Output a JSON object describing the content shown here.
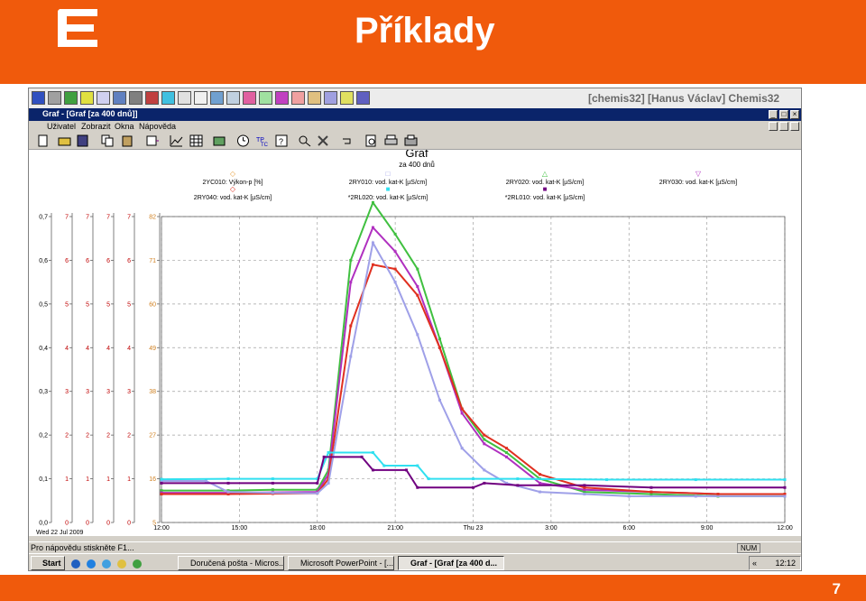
{
  "slide": {
    "title": "Příklady",
    "page_number": "7",
    "brand_color": "#f05a0c"
  },
  "app": {
    "info": "[chemis32] [Hanus Václav]    Chemis32"
  },
  "window": {
    "title": "Graf - [Graf [za 400 dnů]]",
    "buttons": [
      "_",
      "□",
      "×"
    ]
  },
  "menu": {
    "items": [
      "Uživatel",
      "Zobrazit",
      "Okna",
      "Nápověda"
    ]
  },
  "status": {
    "help_text": "Pro nápovědu stiskněte F1...",
    "num": "NUM"
  },
  "taskbar": {
    "start_label": "Start",
    "tasks": [
      {
        "label": "Doručená pošta - Micros...",
        "active": false
      },
      {
        "label": "Microsoft PowerPoint - [...",
        "active": false
      },
      {
        "label": "Graf - [Graf [za 400 d...",
        "active": true
      }
    ],
    "clock": "12:12"
  },
  "chart_data": {
    "type": "line",
    "title": "Graf",
    "subtitle": "za 400 dnů",
    "legend": [
      {
        "code": "2YC010: Výkon-p [%]",
        "color": "#e8a040",
        "marker": "◇"
      },
      {
        "code": "2RY010: vod. kat-K [µS/cm]",
        "color": "#9fa0e8",
        "marker": "□"
      },
      {
        "code": "2RY020: vod. kat-K [µS/cm]",
        "color": "#40c040",
        "marker": "△"
      },
      {
        "code": "2RY030: vod. kat-K [µS/cm]",
        "color": "#b030c0",
        "marker": "▽"
      },
      {
        "code": "2RY040: vod. kat-K [µS/cm]",
        "color": "#e03020",
        "marker": "◇"
      },
      {
        "code": "*2RL020: vod. kat-K [µS/cm]",
        "color": "#30e0f0",
        "marker": "■"
      },
      {
        "code": "*2RL010: vod. kat-K [µS/cm]",
        "color": "#700080",
        "marker": "■"
      }
    ],
    "x_ticks": [
      "12:00",
      "15:00",
      "18:00",
      "21:00",
      "Thu 23",
      "3:00",
      "6:00",
      "9:00",
      "12:00"
    ],
    "x_start_label": "Wed 22 Jul 2009",
    "xlim_hours": [
      -2,
      26
    ],
    "y_axes": [
      {
        "ticks": [
          "0,0",
          "0,1",
          "0,2",
          "0,3",
          "0,4",
          "0,5",
          "0,6",
          "0,7"
        ],
        "color": "#000000"
      },
      {
        "ticks": [
          "0",
          "1",
          "2",
          "3",
          "4",
          "5",
          "6",
          "7"
        ],
        "color": "#c00000"
      },
      {
        "ticks": [
          "0",
          "1",
          "2",
          "3",
          "4",
          "5",
          "6",
          "7"
        ],
        "color": "#c00000"
      },
      {
        "ticks": [
          "0",
          "1",
          "2",
          "3",
          "4",
          "5",
          "6",
          "7"
        ],
        "color": "#c00000"
      },
      {
        "ticks": [
          "0",
          "1",
          "2",
          "3",
          "4",
          "5",
          "6",
          "7"
        ],
        "color": "#c00000"
      },
      {
        "ticks": [
          "5",
          "16",
          "27",
          "38",
          "49",
          "60",
          "71",
          "82"
        ],
        "color": "#d08020"
      }
    ],
    "ylim": [
      0,
      0.7
    ],
    "grid": true,
    "series": [
      {
        "name": "2RY020",
        "color": "#40c040",
        "x": [
          -2,
          1,
          3,
          5,
          5.5,
          6.5,
          7.5,
          8.5,
          9.5,
          10.5,
          11.5,
          12.5,
          13.5,
          15,
          17,
          20,
          23,
          26
        ],
        "y": [
          0.073,
          0.073,
          0.075,
          0.075,
          0.12,
          0.6,
          0.732,
          0.66,
          0.58,
          0.42,
          0.26,
          0.19,
          0.16,
          0.1,
          0.07,
          0.065,
          0.06,
          0.06
        ]
      },
      {
        "name": "2RY030",
        "color": "#b030c0",
        "x": [
          -2,
          1,
          3,
          5,
          5.5,
          6.5,
          7.5,
          8.5,
          9.5,
          10.5,
          11.5,
          12.5,
          13.5,
          15,
          17,
          20,
          23,
          26
        ],
        "y": [
          0.068,
          0.068,
          0.069,
          0.07,
          0.11,
          0.55,
          0.675,
          0.62,
          0.54,
          0.4,
          0.25,
          0.18,
          0.15,
          0.09,
          0.075,
          0.07,
          0.065,
          0.065
        ]
      },
      {
        "name": "2RY040",
        "color": "#e03020",
        "x": [
          -2,
          1,
          3,
          5,
          5.5,
          6.5,
          7.5,
          8.5,
          9.5,
          10.5,
          11.5,
          12.5,
          13.5,
          15,
          17,
          20,
          23,
          26
        ],
        "y": [
          0.065,
          0.065,
          0.066,
          0.067,
          0.1,
          0.45,
          0.59,
          0.58,
          0.52,
          0.4,
          0.26,
          0.2,
          0.17,
          0.11,
          0.08,
          0.07,
          0.065,
          0.065
        ]
      },
      {
        "name": "2RY010",
        "color": "#9fa0e8",
        "x": [
          -2,
          0,
          1,
          3,
          5,
          5.5,
          6.5,
          7.5,
          8.5,
          9.5,
          10.5,
          11.5,
          12.5,
          13.5,
          15,
          17,
          19,
          22,
          26
        ],
        "y": [
          0.095,
          0.095,
          0.07,
          0.068,
          0.067,
          0.09,
          0.38,
          0.64,
          0.55,
          0.43,
          0.28,
          0.17,
          0.12,
          0.09,
          0.07,
          0.065,
          0.06,
          0.06,
          0.06
        ]
      },
      {
        "name": "2RL020",
        "color": "#30e0f0",
        "x": [
          -2,
          1,
          3,
          5,
          5.5,
          7.5,
          8,
          9.5,
          10,
          12,
          14,
          18,
          22,
          26
        ],
        "y": [
          0.099,
          0.1,
          0.1,
          0.1,
          0.16,
          0.16,
          0.13,
          0.13,
          0.1,
          0.1,
          0.1,
          0.098,
          0.098,
          0.098
        ]
      },
      {
        "name": "2RL010",
        "color": "#700080",
        "x": [
          -2,
          1,
          3,
          5,
          5.3,
          7,
          7.5,
          9,
          9.5,
          12,
          12.5,
          14,
          17,
          20,
          26
        ],
        "y": [
          0.09,
          0.09,
          0.09,
          0.09,
          0.15,
          0.15,
          0.12,
          0.12,
          0.08,
          0.08,
          0.09,
          0.085,
          0.085,
          0.08,
          0.08
        ]
      }
    ]
  }
}
